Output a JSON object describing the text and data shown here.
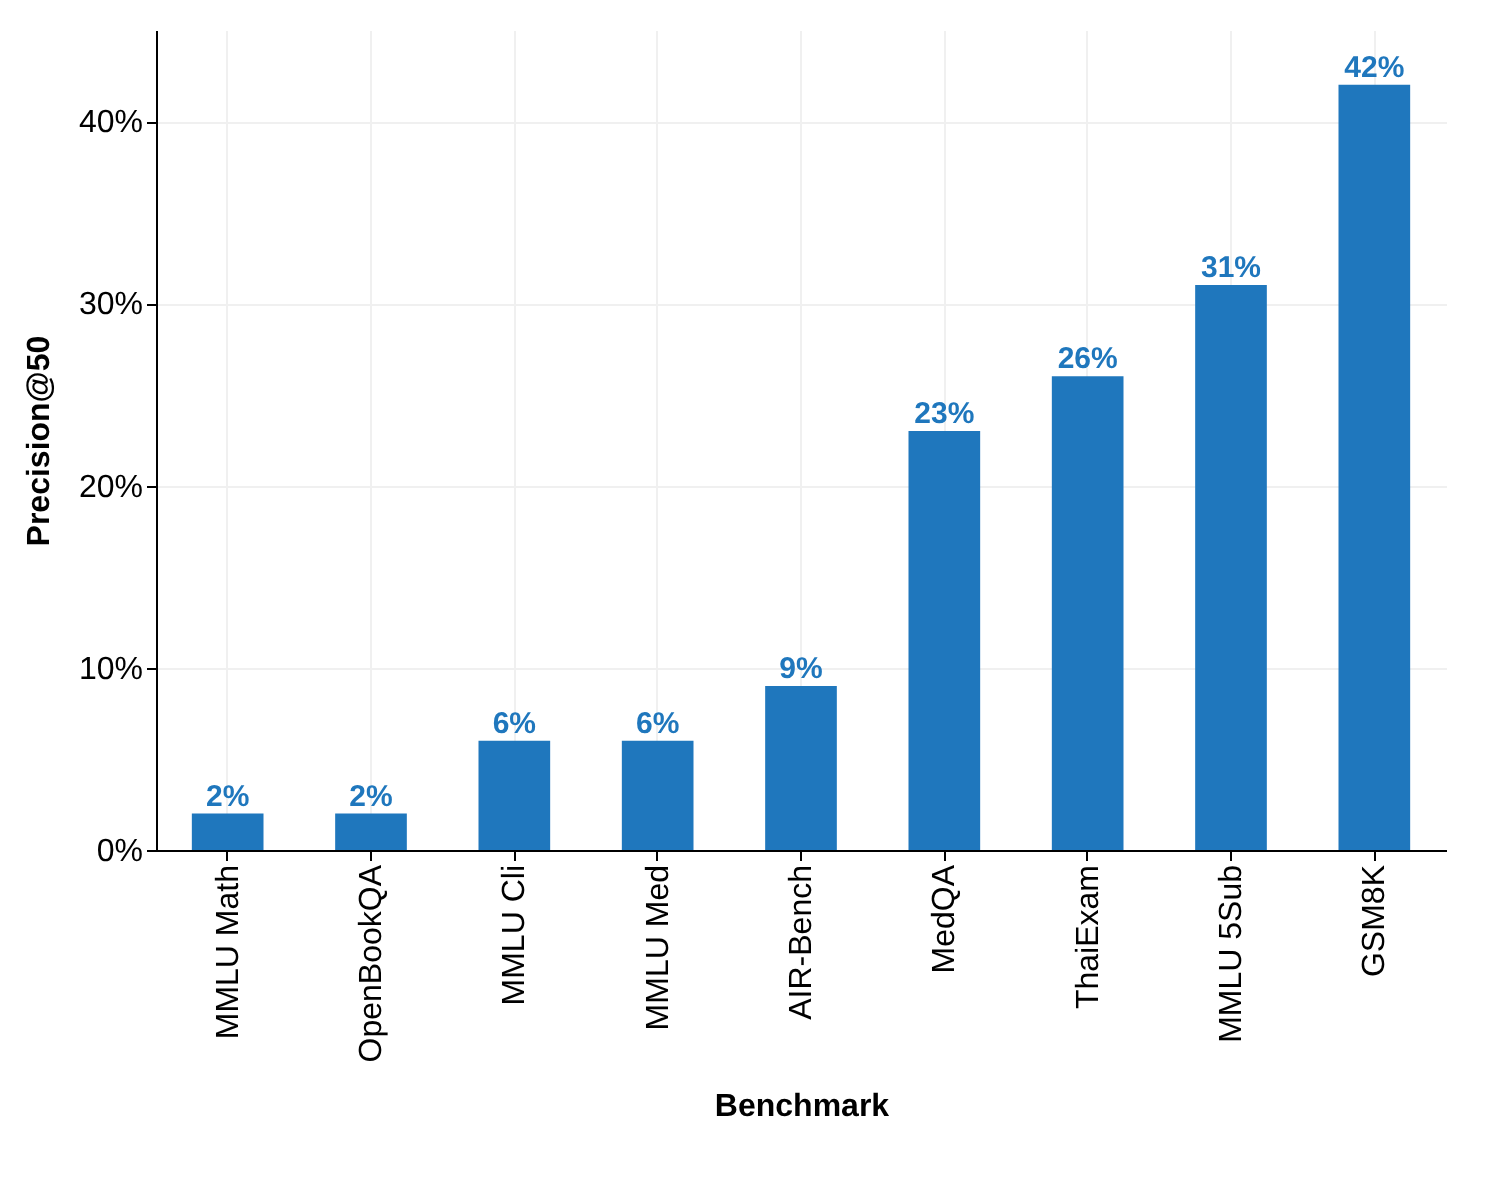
{
  "chart_data": {
    "type": "bar",
    "xlabel": "Benchmark",
    "ylabel": "Precision@50",
    "categories": [
      "MMLU Math",
      "OpenBookQA",
      "MMLU Cli",
      "MMLU Med",
      "AIR-Bench",
      "MedQA",
      "ThaiExam",
      "MMLU 5Sub",
      "GSM8K"
    ],
    "values": [
      2,
      2,
      6,
      6,
      9,
      23,
      26,
      31,
      42
    ],
    "value_labels": [
      "2%",
      "2%",
      "6%",
      "6%",
      "9%",
      "23%",
      "26%",
      "31%",
      "42%"
    ],
    "color": "#1f77bd",
    "ylim": [
      0,
      45
    ],
    "yticks": [
      {
        "value": 0,
        "label": "0%"
      },
      {
        "value": 10,
        "label": "10%"
      },
      {
        "value": 20,
        "label": "20%"
      },
      {
        "value": 30,
        "label": "30%"
      },
      {
        "value": 40,
        "label": "40%"
      }
    ],
    "grid": true
  }
}
